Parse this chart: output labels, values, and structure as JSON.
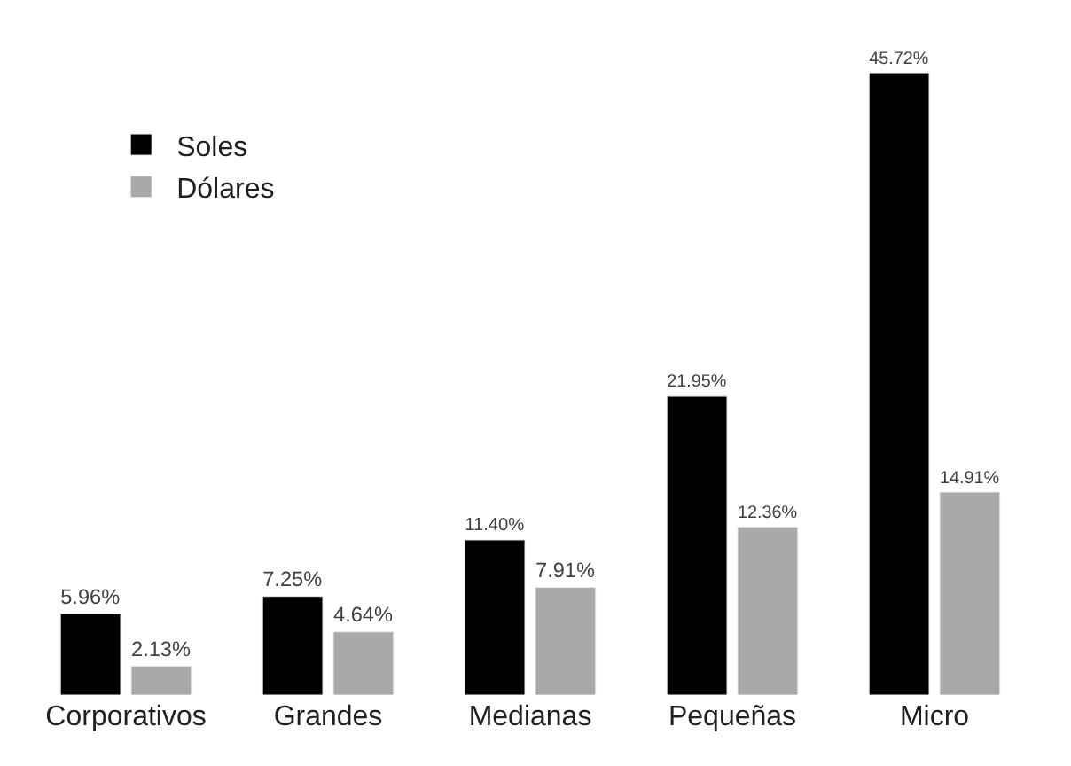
{
  "chart_data": {
    "type": "bar",
    "categories": [
      "Corporativos",
      "Grandes",
      "Medianas",
      "Pequeñas",
      "Micro"
    ],
    "series": [
      {
        "name": "Soles",
        "color": "#000000",
        "values": [
          5.96,
          7.25,
          11.4,
          21.95,
          45.72
        ],
        "value_labels": [
          "5.96%",
          "7.25%",
          "11.40%",
          "21.95%",
          "45.72%"
        ]
      },
      {
        "name": "Dólares",
        "color": "#a9a9a9",
        "values": [
          2.13,
          4.64,
          7.91,
          12.36,
          14.91
        ],
        "value_labels": [
          "2.13%",
          "4.64%",
          "7.91%",
          "12.36%",
          "14.91%"
        ]
      }
    ],
    "legend": "top left"
  }
}
